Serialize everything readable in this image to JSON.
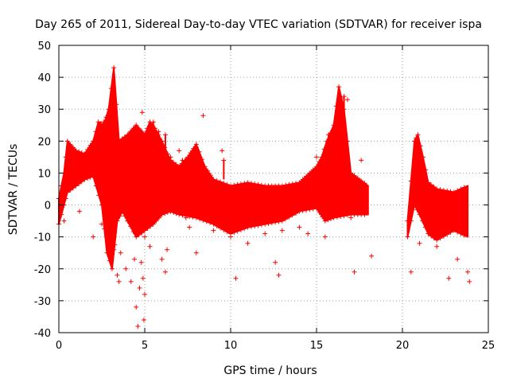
{
  "chart_data": {
    "type": "scatter",
    "title": "Day 265 of 2011, Sidereal Day-to-day VTEC variation (SDTVAR) for receiver ispa",
    "xlabel": "GPS time / hours",
    "ylabel": "SDTVAR / TECUs",
    "xlim": [
      0,
      25
    ],
    "ylim": [
      -40,
      50
    ],
    "xticks": [
      0,
      5,
      10,
      15,
      20,
      25
    ],
    "yticks": [
      -40,
      -30,
      -20,
      -10,
      0,
      10,
      20,
      30,
      40,
      50
    ],
    "grid": true,
    "marker": "+",
    "color": "#ff0000",
    "series": [
      {
        "name": "SDTVAR",
        "upper_envelope": [
          [
            0,
            2
          ],
          [
            0.3,
            10
          ],
          [
            0.5,
            20
          ],
          [
            1,
            17
          ],
          [
            1.5,
            16
          ],
          [
            2,
            20
          ],
          [
            2.3,
            26
          ],
          [
            2.6,
            25
          ],
          [
            2.9,
            30
          ],
          [
            3.2,
            43
          ],
          [
            3.5,
            20
          ],
          [
            4,
            22
          ],
          [
            4.5,
            25
          ],
          [
            5,
            22
          ],
          [
            5.3,
            26
          ],
          [
            5.6,
            24
          ],
          [
            6,
            20
          ],
          [
            6.5,
            14
          ],
          [
            7,
            12
          ],
          [
            7.5,
            15
          ],
          [
            8,
            19
          ],
          [
            8.5,
            12
          ],
          [
            9,
            8
          ],
          [
            10,
            6
          ],
          [
            11,
            7
          ],
          [
            12,
            6
          ],
          [
            13,
            6
          ],
          [
            14,
            7
          ],
          [
            15,
            12
          ],
          [
            15.3,
            15
          ],
          [
            15.6,
            20
          ],
          [
            16,
            25
          ],
          [
            16.3,
            37
          ],
          [
            16.6,
            30
          ],
          [
            17,
            10
          ],
          [
            18,
            6
          ]
        ],
        "lower_envelope": [
          [
            0,
            -6
          ],
          [
            0.3,
            0
          ],
          [
            0.5,
            4
          ],
          [
            1,
            6
          ],
          [
            1.5,
            8
          ],
          [
            2,
            9
          ],
          [
            2.5,
            0
          ],
          [
            2.8,
            -15
          ],
          [
            3.1,
            -20
          ],
          [
            3.4,
            -5
          ],
          [
            3.7,
            -2
          ],
          [
            4,
            -5
          ],
          [
            4.5,
            -10
          ],
          [
            5,
            -8
          ],
          [
            5.5,
            -6
          ],
          [
            6,
            -3
          ],
          [
            6.5,
            -2
          ],
          [
            7,
            -3
          ],
          [
            8,
            -4
          ],
          [
            9,
            -6
          ],
          [
            10,
            -9
          ],
          [
            11,
            -7
          ],
          [
            12,
            -6
          ],
          [
            13,
            -5
          ],
          [
            14,
            -2
          ],
          [
            15,
            -1
          ],
          [
            15.5,
            -5
          ],
          [
            16,
            -4
          ],
          [
            17,
            -3
          ],
          [
            18,
            -3
          ]
        ],
        "upper_envelope_2": [
          [
            20.3,
            -5
          ],
          [
            20.7,
            20
          ],
          [
            20.9,
            22
          ],
          [
            21.2,
            15
          ],
          [
            21.5,
            7
          ],
          [
            22,
            5
          ],
          [
            23,
            4
          ],
          [
            23.8,
            6
          ]
        ],
        "lower_envelope_2": [
          [
            20.3,
            -10
          ],
          [
            20.7,
            0
          ],
          [
            21,
            -3
          ],
          [
            21.5,
            -9
          ],
          [
            22,
            -11
          ],
          [
            23,
            -8
          ],
          [
            23.8,
            -10
          ]
        ],
        "outliers": [
          [
            0.3,
            -5
          ],
          [
            1,
            17
          ],
          [
            1.2,
            -2
          ],
          [
            2,
            -10
          ],
          [
            2.5,
            -6
          ],
          [
            3.2,
            -14
          ],
          [
            3.4,
            -22
          ],
          [
            3.5,
            -24
          ],
          [
            3.6,
            -15
          ],
          [
            3.9,
            -20
          ],
          [
            4,
            -5
          ],
          [
            4.2,
            -24
          ],
          [
            4.4,
            -17
          ],
          [
            4.5,
            -32
          ],
          [
            4.6,
            -38
          ],
          [
            4.7,
            -26
          ],
          [
            4.8,
            -18
          ],
          [
            4.85,
            29
          ],
          [
            4.9,
            -23
          ],
          [
            4.95,
            -36
          ],
          [
            5,
            -10
          ],
          [
            5,
            -28
          ],
          [
            5.3,
            -13
          ],
          [
            5.5,
            -4
          ],
          [
            6,
            -17
          ],
          [
            6.2,
            -21
          ],
          [
            6.3,
            -14
          ],
          [
            7,
            17
          ],
          [
            7.4,
            -4
          ],
          [
            7.6,
            -7
          ],
          [
            8,
            -15
          ],
          [
            8.4,
            28
          ],
          [
            9,
            -8
          ],
          [
            9.5,
            17
          ],
          [
            10,
            -10
          ],
          [
            10.3,
            -23
          ],
          [
            11,
            -12
          ],
          [
            11.5,
            -6
          ],
          [
            12,
            -9
          ],
          [
            12.6,
            -18
          ],
          [
            12.8,
            -22
          ],
          [
            13,
            -8
          ],
          [
            14,
            -7
          ],
          [
            14.5,
            -9
          ],
          [
            15,
            15
          ],
          [
            15.5,
            -10
          ],
          [
            16,
            -3
          ],
          [
            16.8,
            33
          ],
          [
            17,
            -4
          ],
          [
            17.2,
            -21
          ],
          [
            17.6,
            14
          ],
          [
            18.2,
            -16
          ],
          [
            20.5,
            -21
          ],
          [
            21,
            -12
          ],
          [
            22,
            -13
          ],
          [
            22.7,
            -23
          ],
          [
            23.2,
            -17
          ],
          [
            23.8,
            -21
          ],
          [
            23.9,
            -24
          ]
        ],
        "inlier_clusters": [
          [
            0.8,
            17
          ],
          [
            1.2,
            16
          ],
          [
            2.3,
            22
          ],
          [
            2.6,
            26
          ],
          [
            5.3,
            24
          ],
          [
            5.5,
            26
          ],
          [
            5.8,
            23
          ],
          [
            6.2,
            22
          ],
          [
            6.5,
            15
          ],
          [
            7.2,
            14
          ],
          [
            8,
            18
          ],
          [
            9.6,
            14
          ],
          [
            15.7,
            22
          ],
          [
            16,
            22
          ],
          [
            16.6,
            34
          ]
        ]
      }
    ]
  }
}
